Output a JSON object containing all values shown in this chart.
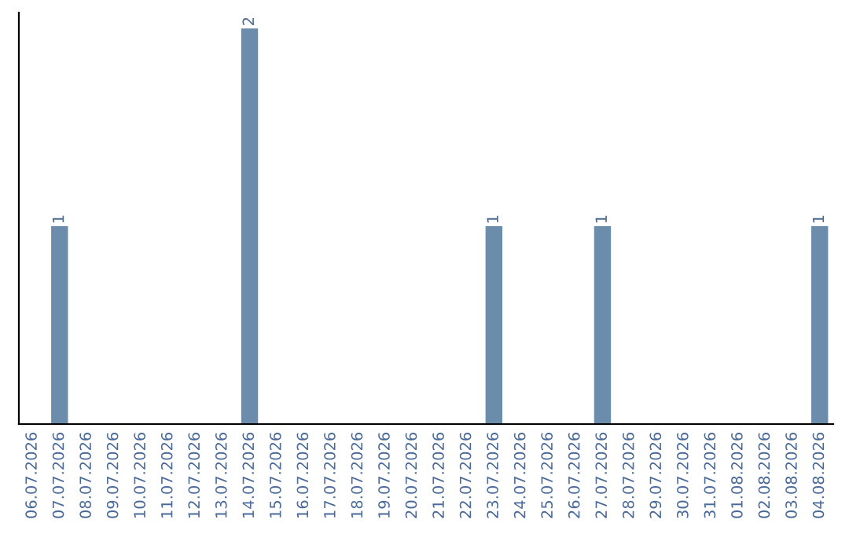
{
  "chart_data": {
    "type": "bar",
    "categories": [
      "06.07.2026",
      "07.07.2026",
      "08.07.2026",
      "09.07.2026",
      "10.07.2026",
      "11.07.2026",
      "12.07.2026",
      "13.07.2026",
      "14.07.2026",
      "15.07.2026",
      "16.07.2026",
      "17.07.2026",
      "18.07.2026",
      "19.07.2026",
      "20.07.2026",
      "21.07.2026",
      "22.07.2026",
      "23.07.2026",
      "24.07.2026",
      "25.07.2026",
      "26.07.2026",
      "27.07.2026",
      "28.07.2026",
      "29.07.2026",
      "30.07.2026",
      "31.07.2026",
      "01.08.2026",
      "02.08.2026",
      "03.08.2026",
      "04.08.2026"
    ],
    "values": [
      0,
      1,
      0,
      0,
      0,
      0,
      0,
      0,
      2,
      0,
      0,
      0,
      0,
      0,
      0,
      0,
      0,
      1,
      0,
      0,
      0,
      1,
      0,
      0,
      0,
      0,
      0,
      0,
      0,
      1
    ],
    "value_labels": [
      null,
      "1",
      null,
      null,
      null,
      null,
      null,
      null,
      "2",
      null,
      null,
      null,
      null,
      null,
      null,
      null,
      null,
      "1",
      null,
      null,
      null,
      "1",
      null,
      null,
      null,
      null,
      null,
      null,
      null,
      "1"
    ],
    "color": "#6b8cab",
    "tick_labels": "x",
    "grid": false,
    "legend": false
  }
}
